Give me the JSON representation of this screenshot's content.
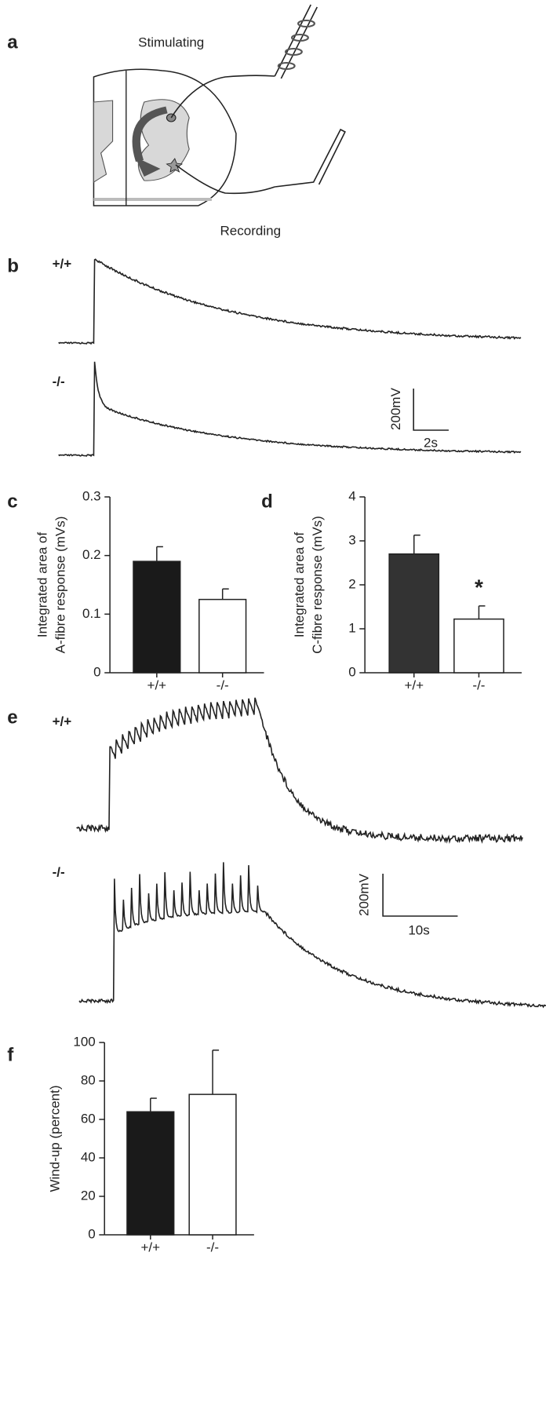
{
  "panel_labels": [
    "a",
    "b",
    "c",
    "d",
    "e",
    "f"
  ],
  "diagram": {
    "stimulating": "Stimulating",
    "recording": "Recording"
  },
  "traces_b": {
    "genotypes": [
      "+/+",
      "-/-"
    ],
    "scale_y": "200mV",
    "scale_x": "2s"
  },
  "traces_e": {
    "genotypes": [
      "+/+",
      "-/-"
    ],
    "scale_y": "200mV",
    "scale_x": "10s"
  },
  "chart_data": [
    {
      "type": "bar",
      "ylabel": [
        "Integrated area of",
        "A-fibre response (mVs)"
      ],
      "categories": [
        "+/+",
        "-/-"
      ],
      "values": [
        0.19,
        0.125
      ],
      "errors": [
        0.025,
        0.018
      ],
      "colors": [
        "#1a1a1a",
        "#ffffff"
      ],
      "ylim": [
        0,
        0.3
      ],
      "yticks": [
        0,
        0.1,
        0.2,
        0.3
      ]
    },
    {
      "type": "bar",
      "ylabel": [
        "Integrated area of",
        "C-fibre response (mVs)"
      ],
      "categories": [
        "+/+",
        "-/-"
      ],
      "values": [
        2.7,
        1.22
      ],
      "errors": [
        0.43,
        0.3
      ],
      "colors": [
        "#333333",
        "#ffffff"
      ],
      "ylim": [
        0,
        4
      ],
      "yticks": [
        0,
        1,
        2,
        3,
        4
      ],
      "annotation": "*"
    },
    {
      "type": "bar",
      "ylabel": [
        "Wind-up (percent)"
      ],
      "categories": [
        "+/+",
        "-/-"
      ],
      "values": [
        64,
        73
      ],
      "errors": [
        7,
        23
      ],
      "colors": [
        "#1a1a1a",
        "#ffffff"
      ],
      "ylim": [
        0,
        100
      ],
      "yticks": [
        0,
        20,
        40,
        60,
        80,
        100
      ]
    }
  ]
}
